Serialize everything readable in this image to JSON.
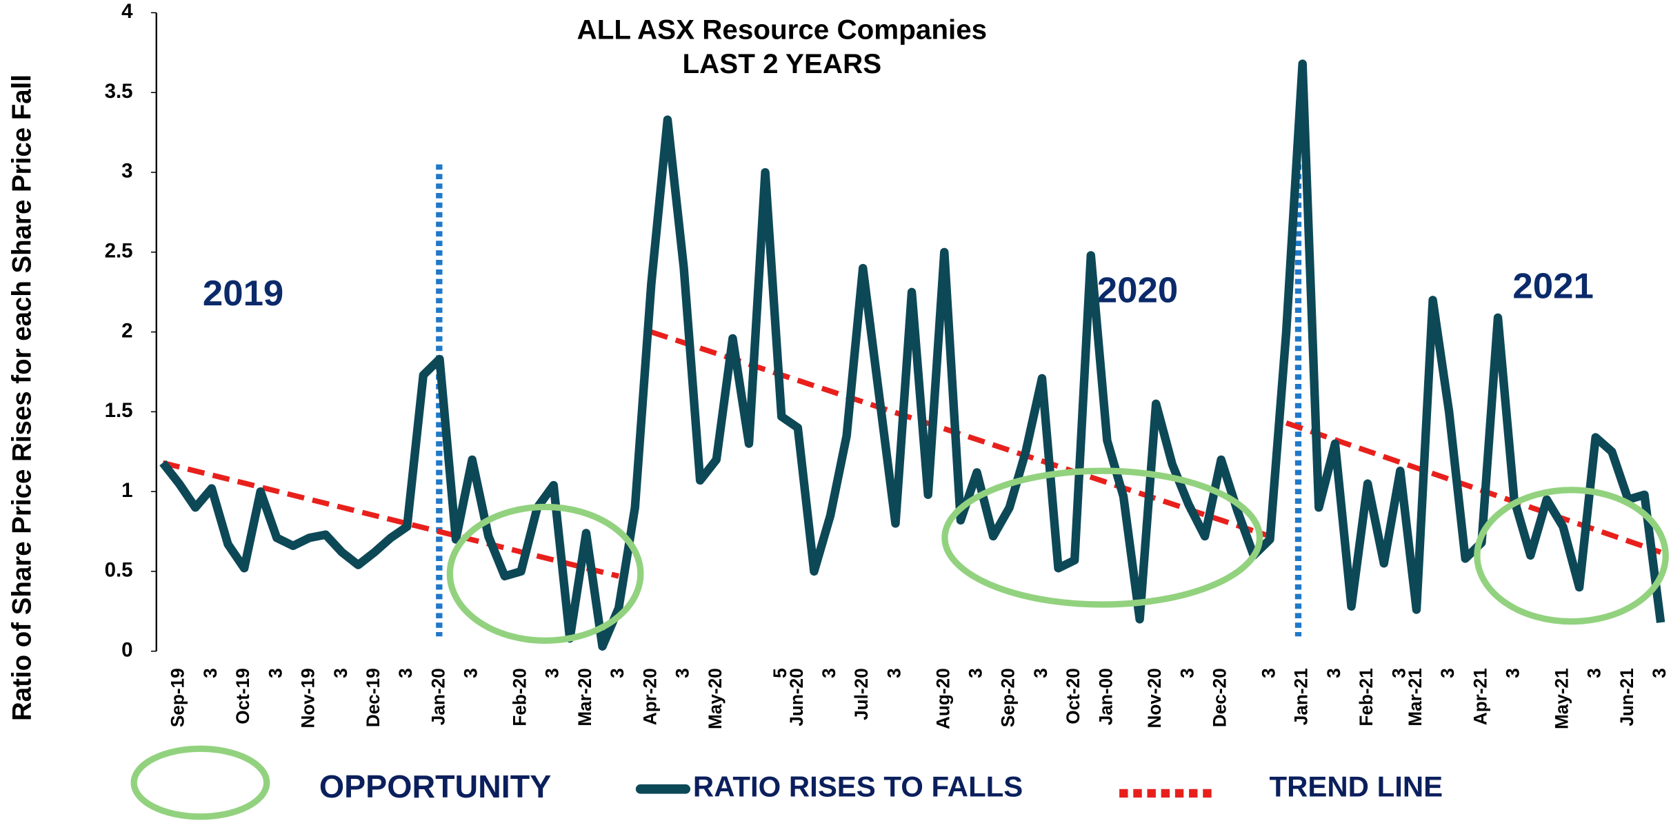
{
  "chart_data": {
    "type": "line",
    "title": "ALL ASX Resource Companies",
    "subtitle": "LAST 2 YEARS",
    "y_label": "Ratio of Share Price Rises for each Share Price Fall",
    "annotations": [
      "2019",
      "2020",
      "2021"
    ],
    "categories": [
      null,
      "Sep-19",
      null,
      "3",
      null,
      "Oct-19",
      null,
      "3",
      null,
      "Nov-19",
      null,
      "3",
      null,
      "Dec-19",
      null,
      "3",
      null,
      "Jan-20",
      null,
      "3",
      null,
      null,
      "Feb-20",
      null,
      "3",
      null,
      "Mar-20",
      null,
      "3",
      null,
      "Apr-20",
      null,
      "3",
      null,
      "May-20",
      null,
      null,
      null,
      "5",
      "Jun-20",
      null,
      "3",
      null,
      "Jul-20",
      null,
      "3",
      null,
      null,
      "Aug-20",
      null,
      "3",
      null,
      "Sep-20",
      null,
      "3",
      null,
      "Oct-20",
      null,
      "Jan-00",
      null,
      null,
      "Nov-20",
      null,
      "3",
      null,
      "Dec-20",
      null,
      null,
      "3",
      null,
      "Jan-21",
      null,
      "3",
      null,
      "Feb-21",
      null,
      "3",
      "Mar-21",
      null,
      "3",
      null,
      "Apr-21",
      null,
      "3",
      null,
      null,
      "May-21",
      null,
      "3",
      null,
      "Jun-21",
      null,
      "3"
    ],
    "series": [
      {
        "name": "RATIO RISES TO FALLS",
        "color": "#0d4857",
        "values": [
          1.18,
          1.05,
          0.9,
          1.02,
          0.67,
          0.52,
          1.0,
          0.71,
          0.66,
          0.71,
          0.73,
          0.62,
          0.54,
          0.62,
          0.71,
          0.78,
          1.73,
          1.83,
          0.7,
          1.2,
          0.72,
          0.47,
          0.5,
          0.9,
          1.04,
          0.08,
          0.74,
          0.03,
          0.27,
          0.9,
          2.3,
          3.33,
          2.4,
          1.07,
          1.2,
          1.96,
          1.3,
          3.0,
          1.47,
          1.4,
          0.5,
          0.85,
          1.35,
          2.4,
          1.6,
          0.8,
          2.25,
          0.98,
          2.5,
          0.82,
          1.12,
          0.72,
          0.9,
          1.25,
          1.71,
          0.52,
          0.57,
          2.48,
          1.32,
          0.97,
          0.2,
          1.55,
          1.17,
          0.92,
          0.72,
          1.2,
          0.88,
          0.6,
          0.7,
          2.0,
          3.68,
          0.9,
          1.3,
          0.28,
          1.05,
          0.55,
          1.13,
          0.26,
          2.2,
          1.5,
          0.58,
          0.68,
          2.09,
          0.95,
          0.6,
          0.95,
          0.78,
          0.4,
          1.34,
          1.25,
          0.95,
          0.98,
          0.18
        ]
      }
    ],
    "trend": {
      "name": "TREND LINE",
      "color": "#e8201c",
      "segments": [
        {
          "x": [
            0,
            28
          ],
          "y": [
            1.18,
            0.47
          ]
        },
        {
          "x": [
            30,
            68
          ],
          "y": [
            2.0,
            0.72
          ]
        },
        {
          "x": [
            69,
            92
          ],
          "y": [
            1.43,
            0.62
          ]
        }
      ]
    },
    "opportunity": {
      "name": "OPPORTUNITY",
      "color": "#92d27f"
    },
    "ylim": [
      0,
      4
    ],
    "yticks": [
      0,
      0.5,
      1,
      1.5,
      2,
      2.5,
      3,
      3.5,
      4
    ]
  }
}
